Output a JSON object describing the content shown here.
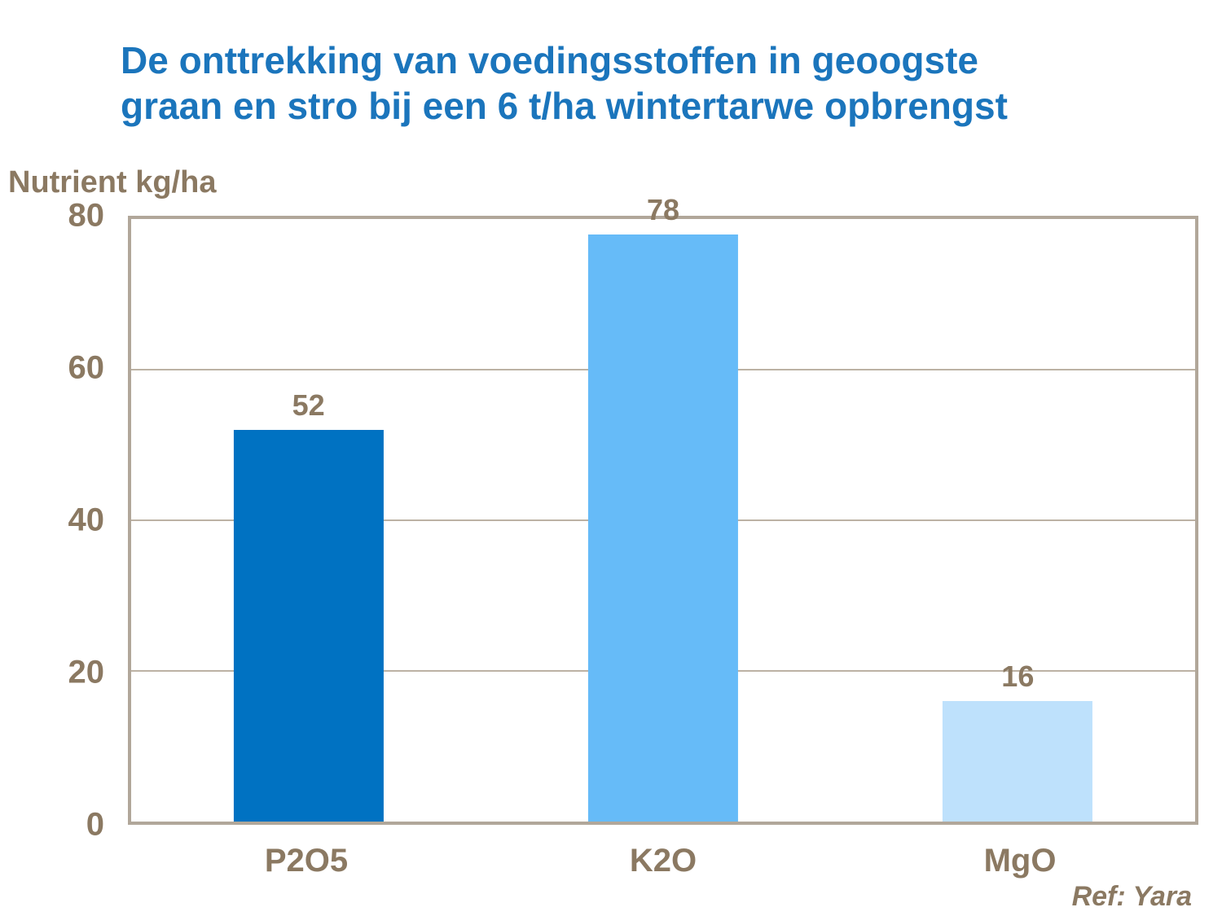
{
  "title": {
    "line1": "De onttrekking van voedingsstoffen in geoogste",
    "line2": "graan en stro bij een 6 t/ha wintertarwe opbrengst"
  },
  "axis_title": "Nutrient kg/ha",
  "reference": "Ref: Yara",
  "colors": {
    "title_blue": "#1B75BC",
    "text_brown": "#8B7962",
    "frame_tan": "#B1A79A",
    "gridline_tan": "#BCB2A4",
    "background": "#FFFFFF"
  },
  "chart_data": {
    "type": "bar",
    "categories": [
      "P2O5",
      "K2O",
      "MgO"
    ],
    "values": [
      52,
      78,
      16
    ],
    "bar_colors": [
      "#0072C2",
      "#66BBF8",
      "#BEE1FC"
    ],
    "title": "De onttrekking van voedingsstoffen in geoogste graan en stro bij een 6 t/ha wintertarwe opbrengst",
    "xlabel": "",
    "ylabel": "Nutrient kg/ha",
    "ylim": [
      0,
      80
    ],
    "yticks": [
      0,
      20,
      40,
      60,
      80
    ],
    "grid": true,
    "legend": "none",
    "annotation": "Ref: Yara"
  }
}
